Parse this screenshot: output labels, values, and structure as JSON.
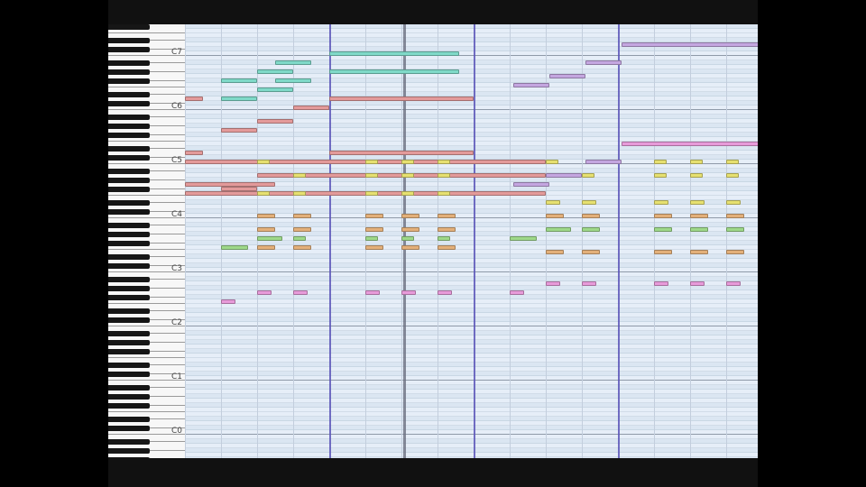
{
  "keyboard": {
    "octave_labels": [
      "C7",
      "C6",
      "C5",
      "C4",
      "C3",
      "C2",
      "C1",
      "C0"
    ]
  },
  "colors": {
    "background": "#000000",
    "roll_background": "#e6eef8",
    "bar_line": "#5a55b8",
    "playhead": "#6b6f80"
  },
  "tracks": [
    {
      "name": "teal",
      "color": "#7fd9c8"
    },
    {
      "name": "red",
      "color": "#e39a9a"
    },
    {
      "name": "lavender",
      "color": "#c4a6e0"
    },
    {
      "name": "yellow",
      "color": "#e6e070"
    },
    {
      "name": "orange",
      "color": "#e3b07a"
    },
    {
      "name": "green",
      "color": "#9ed889"
    },
    {
      "name": "pink",
      "color": "#e79ad9"
    }
  ],
  "notes": [
    {
      "track": "teal",
      "start": 2.5,
      "length": 1.0,
      "pitch": 94
    },
    {
      "track": "teal",
      "start": 4.0,
      "length": 3.6,
      "pitch": 96
    },
    {
      "track": "teal",
      "start": 1.0,
      "length": 1.0,
      "pitch": 90
    },
    {
      "track": "teal",
      "start": 2.0,
      "length": 1.0,
      "pitch": 92
    },
    {
      "track": "teal",
      "start": 2.5,
      "length": 1.0,
      "pitch": 90
    },
    {
      "track": "teal",
      "start": 4.0,
      "length": 3.6,
      "pitch": 92
    },
    {
      "track": "teal",
      "start": 2.0,
      "length": 1.0,
      "pitch": 88
    },
    {
      "track": "teal",
      "start": 1.0,
      "length": 1.0,
      "pitch": 86
    },
    {
      "track": "red",
      "start": 0.0,
      "length": 0.5,
      "pitch": 86
    },
    {
      "track": "red",
      "start": 4.0,
      "length": 4.0,
      "pitch": 86
    },
    {
      "track": "red",
      "start": 3.0,
      "length": 1.0,
      "pitch": 84
    },
    {
      "track": "red",
      "start": 2.0,
      "length": 1.0,
      "pitch": 81
    },
    {
      "track": "red",
      "start": 1.0,
      "length": 1.0,
      "pitch": 79
    },
    {
      "track": "red",
      "start": 0.0,
      "length": 0.5,
      "pitch": 74
    },
    {
      "track": "red",
      "start": 4.0,
      "length": 4.0,
      "pitch": 74
    },
    {
      "track": "red",
      "start": 0.0,
      "length": 10.0,
      "pitch": 72
    },
    {
      "track": "red",
      "start": 2.0,
      "length": 8.0,
      "pitch": 69
    },
    {
      "track": "red",
      "start": 0.0,
      "length": 2.5,
      "pitch": 67
    },
    {
      "track": "red",
      "start": 1.0,
      "length": 1.0,
      "pitch": 66
    },
    {
      "track": "red",
      "start": 0.0,
      "length": 10.0,
      "pitch": 65
    },
    {
      "track": "lavender",
      "start": 12.1,
      "length": 3.9,
      "pitch": 98
    },
    {
      "track": "lavender",
      "start": 11.1,
      "length": 1.0,
      "pitch": 94
    },
    {
      "track": "lavender",
      "start": 10.1,
      "length": 1.0,
      "pitch": 91
    },
    {
      "track": "lavender",
      "start": 9.1,
      "length": 1.0,
      "pitch": 89
    },
    {
      "track": "lavender",
      "start": 11.1,
      "length": 1.0,
      "pitch": 72
    },
    {
      "track": "lavender",
      "start": 10.0,
      "length": 1.0,
      "pitch": 69
    },
    {
      "track": "lavender",
      "start": 9.1,
      "length": 1.0,
      "pitch": 67
    },
    {
      "track": "pink",
      "start": 12.1,
      "length": 3.9,
      "pitch": 76
    },
    {
      "track": "yellow",
      "start": 2.0,
      "length": 0.35,
      "pitch": 72
    },
    {
      "track": "yellow",
      "start": 5.0,
      "length": 0.35,
      "pitch": 72
    },
    {
      "track": "yellow",
      "start": 6.0,
      "length": 0.35,
      "pitch": 72
    },
    {
      "track": "yellow",
      "start": 7.0,
      "length": 0.35,
      "pitch": 72
    },
    {
      "track": "yellow",
      "start": 10.0,
      "length": 0.35,
      "pitch": 72
    },
    {
      "track": "yellow",
      "start": 13.0,
      "length": 0.35,
      "pitch": 72
    },
    {
      "track": "yellow",
      "start": 14.0,
      "length": 0.35,
      "pitch": 72
    },
    {
      "track": "yellow",
      "start": 15.0,
      "length": 0.35,
      "pitch": 72
    },
    {
      "track": "yellow",
      "start": 3.0,
      "length": 0.35,
      "pitch": 69
    },
    {
      "track": "yellow",
      "start": 5.0,
      "length": 0.35,
      "pitch": 69
    },
    {
      "track": "yellow",
      "start": 6.0,
      "length": 0.35,
      "pitch": 69
    },
    {
      "track": "yellow",
      "start": 7.0,
      "length": 0.35,
      "pitch": 69
    },
    {
      "track": "yellow",
      "start": 11.0,
      "length": 0.35,
      "pitch": 69
    },
    {
      "track": "yellow",
      "start": 13.0,
      "length": 0.35,
      "pitch": 69
    },
    {
      "track": "yellow",
      "start": 14.0,
      "length": 0.35,
      "pitch": 69
    },
    {
      "track": "yellow",
      "start": 15.0,
      "length": 0.35,
      "pitch": 69
    },
    {
      "track": "yellow",
      "start": 2.0,
      "length": 0.35,
      "pitch": 65
    },
    {
      "track": "yellow",
      "start": 3.0,
      "length": 0.35,
      "pitch": 65
    },
    {
      "track": "yellow",
      "start": 5.0,
      "length": 0.35,
      "pitch": 65
    },
    {
      "track": "yellow",
      "start": 6.0,
      "length": 0.35,
      "pitch": 65
    },
    {
      "track": "yellow",
      "start": 7.0,
      "length": 0.35,
      "pitch": 65
    },
    {
      "track": "yellow",
      "start": 10.0,
      "length": 0.4,
      "pitch": 63
    },
    {
      "track": "yellow",
      "start": 11.0,
      "length": 0.4,
      "pitch": 63
    },
    {
      "track": "yellow",
      "start": 13.0,
      "length": 0.4,
      "pitch": 63
    },
    {
      "track": "yellow",
      "start": 14.0,
      "length": 0.4,
      "pitch": 63
    },
    {
      "track": "yellow",
      "start": 15.0,
      "length": 0.4,
      "pitch": 63
    },
    {
      "track": "orange",
      "start": 2.0,
      "length": 0.5,
      "pitch": 60
    },
    {
      "track": "orange",
      "start": 3.0,
      "length": 0.5,
      "pitch": 60
    },
    {
      "track": "orange",
      "start": 5.0,
      "length": 0.5,
      "pitch": 60
    },
    {
      "track": "orange",
      "start": 6.0,
      "length": 0.5,
      "pitch": 60
    },
    {
      "track": "orange",
      "start": 7.0,
      "length": 0.5,
      "pitch": 60
    },
    {
      "track": "orange",
      "start": 10.0,
      "length": 0.5,
      "pitch": 60
    },
    {
      "track": "orange",
      "start": 11.0,
      "length": 0.5,
      "pitch": 60
    },
    {
      "track": "orange",
      "start": 13.0,
      "length": 0.5,
      "pitch": 60
    },
    {
      "track": "orange",
      "start": 14.0,
      "length": 0.5,
      "pitch": 60
    },
    {
      "track": "orange",
      "start": 15.0,
      "length": 0.5,
      "pitch": 60
    },
    {
      "track": "orange",
      "start": 2.0,
      "length": 0.5,
      "pitch": 57
    },
    {
      "track": "orange",
      "start": 3.0,
      "length": 0.5,
      "pitch": 57
    },
    {
      "track": "orange",
      "start": 5.0,
      "length": 0.5,
      "pitch": 57
    },
    {
      "track": "orange",
      "start": 6.0,
      "length": 0.5,
      "pitch": 57
    },
    {
      "track": "orange",
      "start": 7.0,
      "length": 0.5,
      "pitch": 57
    },
    {
      "track": "green",
      "start": 10.0,
      "length": 0.7,
      "pitch": 57
    },
    {
      "track": "green",
      "start": 11.0,
      "length": 0.5,
      "pitch": 57
    },
    {
      "track": "green",
      "start": 13.0,
      "length": 0.5,
      "pitch": 57
    },
    {
      "track": "green",
      "start": 14.0,
      "length": 0.5,
      "pitch": 57
    },
    {
      "track": "green",
      "start": 15.0,
      "length": 0.5,
      "pitch": 57
    },
    {
      "track": "green",
      "start": 2.0,
      "length": 0.7,
      "pitch": 55
    },
    {
      "track": "green",
      "start": 3.0,
      "length": 0.35,
      "pitch": 55
    },
    {
      "track": "green",
      "start": 5.0,
      "length": 0.35,
      "pitch": 55
    },
    {
      "track": "green",
      "start": 6.0,
      "length": 0.35,
      "pitch": 55
    },
    {
      "track": "green",
      "start": 7.0,
      "length": 0.35,
      "pitch": 55
    },
    {
      "track": "green",
      "start": 9.0,
      "length": 0.75,
      "pitch": 55
    },
    {
      "track": "green",
      "start": 1.0,
      "length": 0.75,
      "pitch": 53
    },
    {
      "track": "orange",
      "start": 2.0,
      "length": 0.5,
      "pitch": 53
    },
    {
      "track": "orange",
      "start": 3.0,
      "length": 0.5,
      "pitch": 53
    },
    {
      "track": "orange",
      "start": 5.0,
      "length": 0.5,
      "pitch": 53
    },
    {
      "track": "orange",
      "start": 6.0,
      "length": 0.5,
      "pitch": 53
    },
    {
      "track": "orange",
      "start": 7.0,
      "length": 0.5,
      "pitch": 53
    },
    {
      "track": "orange",
      "start": 10.0,
      "length": 0.5,
      "pitch": 52
    },
    {
      "track": "orange",
      "start": 11.0,
      "length": 0.5,
      "pitch": 52
    },
    {
      "track": "orange",
      "start": 13.0,
      "length": 0.5,
      "pitch": 52
    },
    {
      "track": "orange",
      "start": 14.0,
      "length": 0.5,
      "pitch": 52
    },
    {
      "track": "orange",
      "start": 15.0,
      "length": 0.5,
      "pitch": 52
    },
    {
      "track": "pink",
      "start": 10.0,
      "length": 0.4,
      "pitch": 45
    },
    {
      "track": "pink",
      "start": 11.0,
      "length": 0.4,
      "pitch": 45
    },
    {
      "track": "pink",
      "start": 13.0,
      "length": 0.4,
      "pitch": 45
    },
    {
      "track": "pink",
      "start": 14.0,
      "length": 0.4,
      "pitch": 45
    },
    {
      "track": "pink",
      "start": 15.0,
      "length": 0.4,
      "pitch": 45
    },
    {
      "track": "pink",
      "start": 2.0,
      "length": 0.4,
      "pitch": 43
    },
    {
      "track": "pink",
      "start": 3.0,
      "length": 0.4,
      "pitch": 43
    },
    {
      "track": "pink",
      "start": 5.0,
      "length": 0.4,
      "pitch": 43
    },
    {
      "track": "pink",
      "start": 6.0,
      "length": 0.4,
      "pitch": 43
    },
    {
      "track": "pink",
      "start": 7.0,
      "length": 0.4,
      "pitch": 43
    },
    {
      "track": "pink",
      "start": 9.0,
      "length": 0.4,
      "pitch": 43
    },
    {
      "track": "pink",
      "start": 1.0,
      "length": 0.4,
      "pitch": 41
    }
  ],
  "timeline": {
    "beats_visible": 16,
    "beats_per_bar": 4,
    "playhead_beat": 6.05
  }
}
